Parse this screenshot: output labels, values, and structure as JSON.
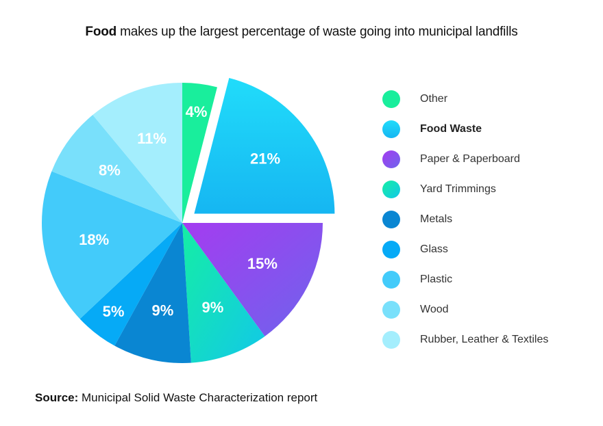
{
  "title": {
    "bold": "Food",
    "rest": " makes up the largest percentage of waste going into municipal landfills"
  },
  "source": {
    "label": "Source:",
    "text": " Municipal Solid Waste Characterization report"
  },
  "colors": {
    "other": "#19ee9c",
    "food_top": "#21dcfa",
    "food_bottom": "#16b6f2",
    "paper_top": "#a43cf0",
    "paper_bottom": "#6e64ec",
    "yard_top": "#15eea4",
    "yard_bottom": "#12c8e8",
    "metals": "#0a86d2",
    "glass": "#06aaf6",
    "plastic": "#43cbfa",
    "wood": "#79e0fb",
    "rubber": "#a4eefd"
  },
  "chart_data": {
    "type": "pie",
    "title": "Food makes up the largest percentage of waste going into municipal landfills",
    "slices": [
      {
        "name": "Other",
        "value": 4,
        "label": "4%",
        "color_key": "other",
        "exploded": false,
        "bold": false
      },
      {
        "name": "Food Waste",
        "value": 21,
        "label": "21%",
        "color_key": "food",
        "exploded": true,
        "bold": true
      },
      {
        "name": "Paper & Paperboard",
        "value": 15,
        "label": "15%",
        "color_key": "paper",
        "exploded": false,
        "bold": false
      },
      {
        "name": "Yard Trimmings",
        "value": 9,
        "label": "9%",
        "color_key": "yard",
        "exploded": false,
        "bold": false
      },
      {
        "name": "Metals",
        "value": 9,
        "label": "9%",
        "color_key": "metals",
        "exploded": false,
        "bold": false
      },
      {
        "name": "Glass",
        "value": 5,
        "label": "5%",
        "color_key": "glass",
        "exploded": false,
        "bold": false
      },
      {
        "name": "Plastic",
        "value": 18,
        "label": "18%",
        "color_key": "plastic",
        "exploded": false,
        "bold": false
      },
      {
        "name": "Wood",
        "value": 8,
        "label": "8%",
        "color_key": "wood",
        "exploded": false,
        "bold": false
      },
      {
        "name": "Rubber, Leather & Textiles",
        "value": 11,
        "label": "11%",
        "color_key": "rubber",
        "exploded": false,
        "bold": false
      }
    ],
    "legend_position": "right",
    "start_angle": "12 o'clock",
    "direction": "clockwise"
  }
}
